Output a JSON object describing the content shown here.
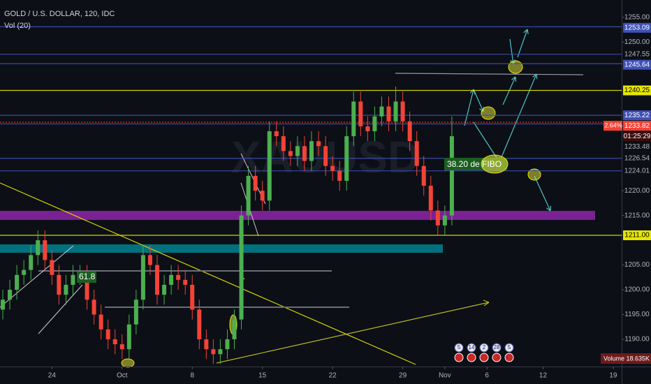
{
  "chart_data": {
    "type": "candlestick",
    "title": "GOLD / U.S. DOLLAR, 120, IDC",
    "subtitle": "Vol (20)",
    "watermark": "XAUUSD",
    "up_color": "#4caf50",
    "down_color": "#f44336",
    "x": [
      -3.5,
      -3,
      -2.5,
      -2,
      -1.5,
      -1,
      -0.5,
      0,
      0.5,
      1,
      1.5,
      2,
      2.5,
      3,
      3.5,
      4,
      4.5,
      5,
      5.5,
      6,
      6.5,
      7,
      7.5,
      8,
      8.5,
      9,
      9.5,
      10,
      10.5,
      11,
      11.5,
      12,
      12.5,
      13,
      13.5,
      14,
      14.5,
      15,
      15.5,
      16,
      16.5,
      17,
      17.5,
      18,
      18.5,
      19,
      19.5,
      20,
      20.5,
      21,
      21.5,
      22,
      22.5,
      23,
      23.5,
      24,
      24.5,
      25,
      25.5,
      26,
      26.5,
      27,
      27.5,
      28,
      28.5
    ],
    "open": [
      1196,
      1198,
      1200,
      1203,
      1204,
      1207,
      1210,
      1206,
      1203,
      1199,
      1201,
      1203,
      1203,
      1198,
      1195,
      1192,
      1190,
      1189,
      1188,
      1193,
      1198,
      1207,
      1205,
      1199,
      1201,
      1203,
      1202,
      1201,
      1196,
      1190,
      1188,
      1187,
      1188,
      1190,
      1194,
      1215,
      1223,
      1220,
      1218,
      1232,
      1231,
      1228,
      1227,
      1229,
      1226,
      1230,
      1229,
      1225,
      1224,
      1222,
      1231,
      1238,
      1233,
      1232,
      1235,
      1237,
      1234,
      1238,
      1234,
      1230,
      1225,
      1221,
      1216,
      1213,
      1215
    ],
    "high": [
      1200,
      1202,
      1205,
      1206,
      1209,
      1212,
      1212,
      1208,
      1205,
      1203,
      1205,
      1205,
      1205,
      1200,
      1197,
      1194,
      1192,
      1191,
      1195,
      1200,
      1209,
      1209,
      1207,
      1203,
      1205,
      1205,
      1204,
      1203,
      1198,
      1192,
      1190,
      1190,
      1192,
      1196,
      1217,
      1225,
      1225,
      1222,
      1234,
      1234,
      1233,
      1230,
      1231,
      1231,
      1232,
      1232,
      1231,
      1227,
      1226,
      1233,
      1240,
      1240,
      1235,
      1237,
      1239,
      1239,
      1241,
      1240,
      1236,
      1232,
      1227,
      1223,
      1218,
      1217,
      1235
    ],
    "low": [
      1194,
      1196,
      1198,
      1201,
      1202,
      1205,
      1204,
      1201,
      1197,
      1197,
      1199,
      1201,
      1196,
      1193,
      1190,
      1188,
      1187,
      1186,
      1186,
      1191,
      1196,
      1203,
      1197,
      1197,
      1199,
      1200,
      1199,
      1194,
      1188,
      1186,
      1185,
      1185,
      1186,
      1188,
      1192,
      1213,
      1218,
      1216,
      1216,
      1229,
      1226,
      1225,
      1225,
      1224,
      1224,
      1227,
      1223,
      1222,
      1220,
      1220,
      1229,
      1231,
      1230,
      1230,
      1233,
      1232,
      1232,
      1232,
      1228,
      1223,
      1219,
      1214,
      1211,
      1211,
      1213
    ],
    "close": [
      1198,
      1200,
      1203,
      1204,
      1207,
      1210,
      1206,
      1203,
      1199,
      1201,
      1203,
      1203,
      1198,
      1195,
      1192,
      1190,
      1189,
      1188,
      1193,
      1198,
      1207,
      1205,
      1199,
      1201,
      1203,
      1202,
      1201,
      1196,
      1190,
      1188,
      1187,
      1188,
      1190,
      1194,
      1215,
      1223,
      1220,
      1218,
      1232,
      1231,
      1228,
      1227,
      1229,
      1226,
      1230,
      1229,
      1225,
      1224,
      1222,
      1231,
      1238,
      1233,
      1232,
      1235,
      1237,
      1234,
      1238,
      1234,
      1230,
      1225,
      1221,
      1216,
      1213,
      1215,
      1231
    ],
    "xlim": [
      -3.7,
      40.6
    ],
    "ylim": [
      1184.5,
      1258.5
    ],
    "xticks": [
      {
        "value": 0,
        "label": "24"
      },
      {
        "value": 5,
        "label": "Oct"
      },
      {
        "value": 10,
        "label": "8"
      },
      {
        "value": 15,
        "label": "15"
      },
      {
        "value": 20,
        "label": "22"
      },
      {
        "value": 25,
        "label": "29"
      },
      {
        "value": 28,
        "label": "Nov"
      },
      {
        "value": 31,
        "label": "6"
      },
      {
        "value": 35,
        "label": "12"
      },
      {
        "value": 40,
        "label": "19"
      }
    ],
    "yticks": [
      {
        "value": 1255,
        "label": "1255.00"
      },
      {
        "value": 1250,
        "label": "1250.00"
      },
      {
        "value": 1220,
        "label": "1220.00"
      },
      {
        "value": 1215,
        "label": "1215.00"
      },
      {
        "value": 1205,
        "label": "1205.00"
      },
      {
        "value": 1200,
        "label": "1200.00"
      },
      {
        "value": 1195,
        "label": "1195.00"
      },
      {
        "value": 1190,
        "label": "1190.00"
      }
    ],
    "levels": [
      {
        "value": 1253.09,
        "color": "#3f51b5",
        "box": true
      },
      {
        "value": 1247.55,
        "color": "#3f51b5",
        "box": false
      },
      {
        "value": 1245.64,
        "color": "#3f51b5",
        "box": true
      },
      {
        "value": 1240.25,
        "color": "#e6e600",
        "box": true
      },
      {
        "value": 1235.22,
        "color": "#3f51b5",
        "box": true
      },
      {
        "value": 1233.48,
        "color": "#3f51b5",
        "box": false
      },
      {
        "value": 1226.54,
        "color": "#3f51b5",
        "box": false
      },
      {
        "value": 1224.01,
        "color": "#3f51b5",
        "box": false
      },
      {
        "value": 1211,
        "label": "1211.00",
        "color": "#e6e600",
        "box": true
      }
    ],
    "last_price": 1233.82,
    "last_change": {
      "value": 2.64,
      "label": "2.64%"
    },
    "countdown": "01:25:29",
    "annotations": [
      "61.8",
      "38.20 de FIBO"
    ],
    "event_badges": [
      "5",
      "14",
      "2",
      "28",
      "5"
    ],
    "volume_label": "Volume",
    "volume": {
      "value": 18635,
      "label": "18.635K"
    }
  }
}
